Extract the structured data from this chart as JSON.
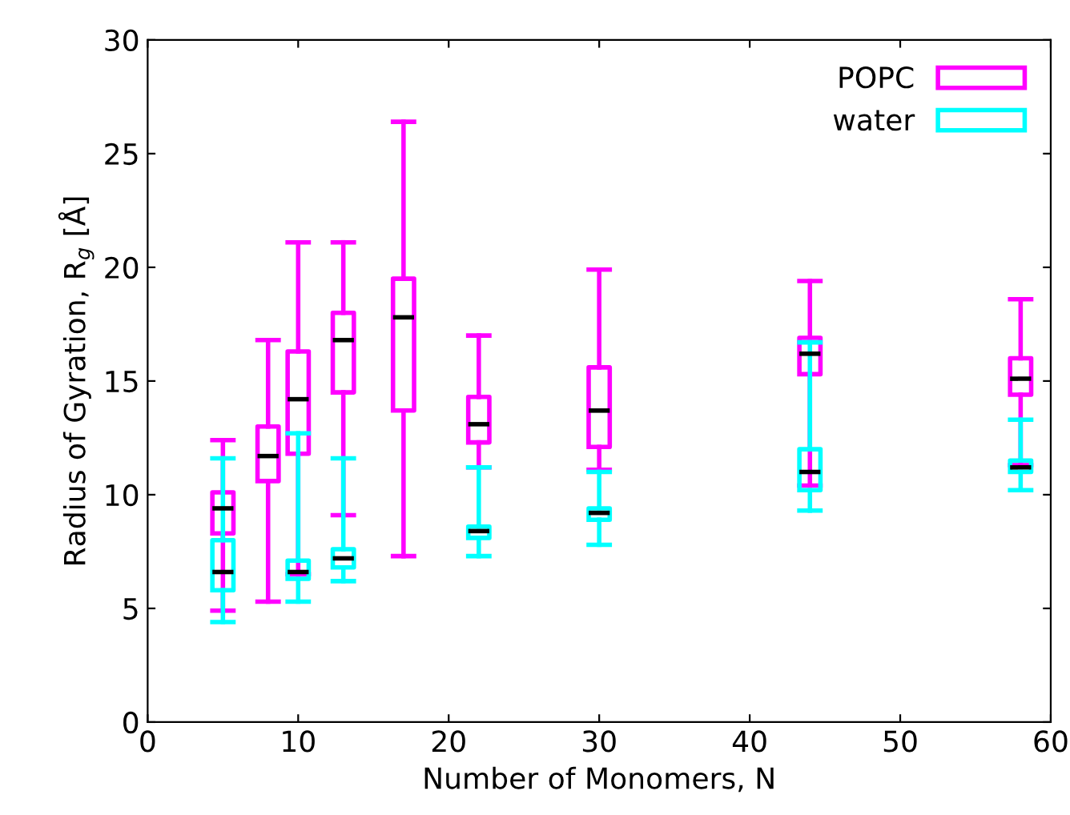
{
  "chart_data": {
    "type": "box",
    "xlabel": "Number of Monomers, N",
    "ylabel": "Radius of Gyration, R$_{g}$ [Å]",
    "xlim": [
      0,
      60
    ],
    "xticks": [
      0,
      10,
      20,
      30,
      40,
      50,
      60
    ],
    "ylim": [
      0,
      30
    ],
    "yticks": [
      0,
      5,
      10,
      15,
      20,
      25,
      30
    ],
    "grid": false,
    "legend": "top right",
    "series": [
      {
        "name": "POPC",
        "color": "#ff00ff",
        "x": [
          5,
          8,
          10,
          13,
          17,
          22,
          30,
          44,
          58
        ],
        "boxes": [
          {
            "low": 4.9,
            "q1": 8.3,
            "median": 9.4,
            "q3": 10.1,
            "high": 12.4
          },
          {
            "low": 5.3,
            "q1": 10.6,
            "median": 11.7,
            "q3": 13.0,
            "high": 16.8
          },
          {
            "low": 6.5,
            "q1": 11.8,
            "median": 14.2,
            "q3": 16.3,
            "high": 21.1
          },
          {
            "low": 9.1,
            "q1": 14.5,
            "median": 16.8,
            "q3": 18.0,
            "high": 21.1
          },
          {
            "low": 7.3,
            "q1": 13.7,
            "median": 17.8,
            "q3": 19.5,
            "high": 26.4
          },
          {
            "low": 11.2,
            "q1": 12.3,
            "median": 13.1,
            "q3": 14.3,
            "high": 17.0
          },
          {
            "low": 11.1,
            "q1": 12.1,
            "median": 13.7,
            "q3": 15.6,
            "high": 19.9
          },
          {
            "low": 10.4,
            "q1": 15.3,
            "median": 16.2,
            "q3": 16.9,
            "high": 19.4
          },
          {
            "low": 11.3,
            "q1": 14.4,
            "median": 15.1,
            "q3": 16.0,
            "high": 18.6
          }
        ]
      },
      {
        "name": "water",
        "color": "#00ffff",
        "x": [
          5,
          10,
          13,
          22,
          30,
          44,
          58
        ],
        "boxes": [
          {
            "low": 4.4,
            "q1": 5.8,
            "median": 6.6,
            "q3": 8.0,
            "high": 11.6
          },
          {
            "low": 5.3,
            "q1": 6.3,
            "median": 6.6,
            "q3": 7.1,
            "high": 12.7
          },
          {
            "low": 6.2,
            "q1": 6.8,
            "median": 7.2,
            "q3": 7.6,
            "high": 11.6
          },
          {
            "low": 7.3,
            "q1": 8.1,
            "median": 8.4,
            "q3": 8.6,
            "high": 11.2
          },
          {
            "low": 7.8,
            "q1": 8.9,
            "median": 9.2,
            "q3": 9.4,
            "high": 11.0
          },
          {
            "low": 9.3,
            "q1": 10.2,
            "median": 11.0,
            "q3": 12.0,
            "high": 16.7
          },
          {
            "low": 10.2,
            "q1": 11.0,
            "median": 11.2,
            "q3": 11.5,
            "high": 13.3
          }
        ]
      }
    ]
  }
}
